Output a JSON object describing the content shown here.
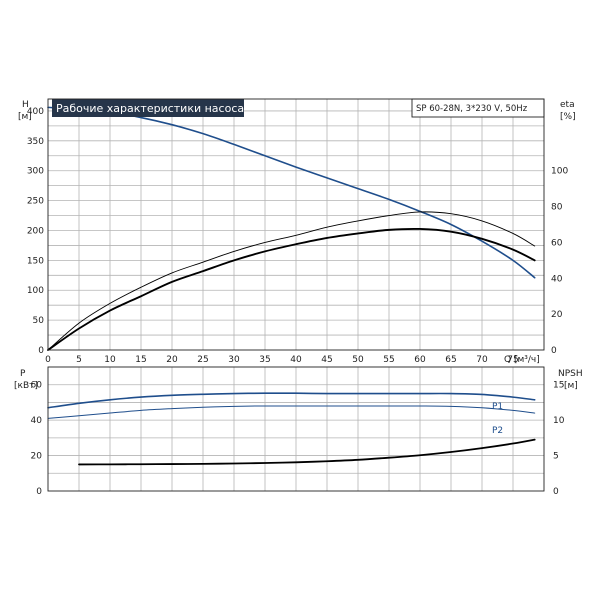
{
  "chart_data": [
    {
      "type": "line",
      "title": "Рабочие характеристики насоса",
      "subtitle": "SP 60-28N, 3*230 V, 50Hz",
      "xlabel": "Q [м³/ч]",
      "ylabel_unit": "[м]",
      "ylabel": "H",
      "y2label": "eta",
      "y2label_unit": "[%]",
      "xlim": [
        0,
        80
      ],
      "ylim": [
        0,
        420
      ],
      "y2lim": [
        0,
        140
      ],
      "x_ticks": [
        "0",
        "5",
        "10",
        "15",
        "20",
        "25",
        "30",
        "35",
        "40",
        "45",
        "50",
        "55",
        "60",
        "65",
        "70",
        "75"
      ],
      "y_ticks": [
        "0",
        "50",
        "100",
        "150",
        "200",
        "250",
        "300",
        "350",
        "400"
      ],
      "y2_ticks": [
        "0",
        "20",
        "40",
        "60",
        "80",
        "100"
      ],
      "grid": true,
      "series": [
        {
          "name": "H",
          "axis": "left",
          "color": "#1f4e8c",
          "x": [
            0,
            5,
            10,
            15,
            20,
            25,
            30,
            35,
            40,
            45,
            50,
            55,
            60,
            65,
            70,
            75,
            78.5
          ],
          "y": [
            406,
            403,
            398,
            389,
            377,
            362,
            344,
            325,
            306,
            288,
            270,
            252,
            232,
            210,
            182,
            150,
            121
          ]
        },
        {
          "axis": "right",
          "color": "#000000",
          "x": [
            0,
            5,
            10,
            15,
            20,
            25,
            30,
            35,
            40,
            45,
            50,
            55,
            60,
            65,
            70,
            75,
            78.5
          ],
          "y": [
            0,
            15,
            26,
            35,
            43,
            49,
            55,
            60,
            64,
            68.5,
            72,
            75,
            77,
            76,
            72,
            65,
            58
          ]
        },
        {
          "axis": "right",
          "color": "#000000",
          "x": [
            0,
            5,
            10,
            15,
            20,
            25,
            30,
            35,
            40,
            45,
            50,
            55,
            60,
            65,
            70,
            75,
            78.5
          ],
          "y": [
            0,
            12,
            22,
            30,
            38,
            44,
            50,
            55,
            59,
            62.5,
            65,
            67,
            67.5,
            66,
            62,
            56,
            50
          ]
        }
      ]
    },
    {
      "type": "line",
      "ylabel": "P",
      "ylabel_unit": "[кВт]",
      "y2label": "NPSH",
      "y2label_unit": "[м]",
      "xlim": [
        0,
        80
      ],
      "ylim": [
        0,
        70
      ],
      "y2lim": [
        0,
        17.5
      ],
      "y_ticks": [
        "0",
        "20",
        "40",
        "60"
      ],
      "y2_ticks": [
        "0",
        "5",
        "10",
        "15"
      ],
      "grid": true,
      "series": [
        {
          "name": "P1",
          "axis": "left",
          "color": "#1f4e8c",
          "x": [
            0,
            5,
            10,
            15,
            20,
            25,
            30,
            35,
            40,
            45,
            50,
            55,
            60,
            65,
            70,
            75,
            78.5
          ],
          "y": [
            47,
            49.5,
            51.5,
            53,
            54,
            54.6,
            55,
            55.2,
            55.2,
            55,
            55,
            55,
            55,
            55,
            54.5,
            53,
            51.5
          ]
        },
        {
          "name": "P2",
          "axis": "left",
          "color": "#1f4e8c",
          "x": [
            0,
            5,
            10,
            15,
            20,
            25,
            30,
            35,
            40,
            45,
            50,
            55,
            60,
            65,
            70,
            75,
            78.5
          ],
          "y": [
            41,
            42.5,
            44,
            45.5,
            46.5,
            47.3,
            47.8,
            48,
            48,
            48,
            48,
            48,
            48,
            47.8,
            47,
            45.5,
            44
          ]
        },
        {
          "name": "NPSH",
          "axis": "right",
          "color": "#000000",
          "x": [
            5,
            10,
            15,
            20,
            25,
            30,
            35,
            40,
            45,
            50,
            55,
            60,
            65,
            70,
            75,
            78.5
          ],
          "y": [
            3.75,
            3.76,
            3.78,
            3.8,
            3.83,
            3.88,
            3.95,
            4.05,
            4.2,
            4.4,
            4.7,
            5.05,
            5.5,
            6.05,
            6.7,
            7.25
          ]
        }
      ]
    }
  ]
}
